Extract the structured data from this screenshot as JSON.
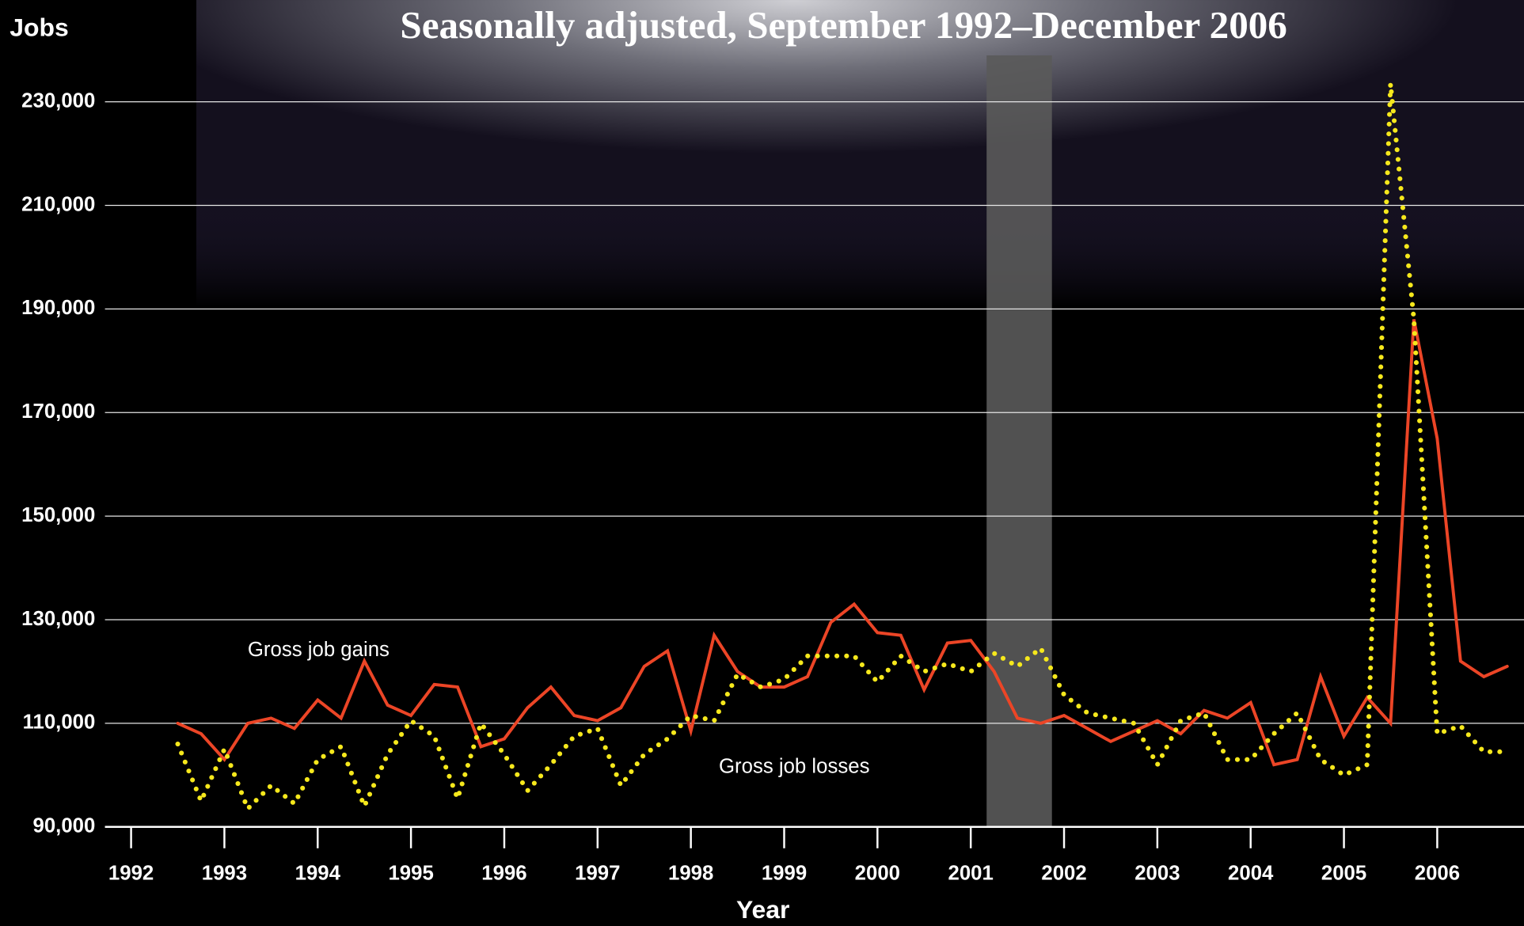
{
  "chart_data": {
    "type": "line",
    "title": "Seasonally adjusted, September 1992–December 2006",
    "y_label": "Jobs",
    "x_label": "Year",
    "xlim": [
      1991.72,
      2006.93
    ],
    "xticks": [
      1992,
      1993,
      1994,
      1995,
      1996,
      1997,
      1998,
      1999,
      2000,
      2001,
      2002,
      2003,
      2004,
      2005,
      2006
    ],
    "ylim": [
      90000,
      240000
    ],
    "yticks": [
      {
        "value": 90000,
        "label": "90,000"
      },
      {
        "value": 110000,
        "label": "110,000"
      },
      {
        "value": 130000,
        "label": "130,000"
      },
      {
        "value": 150000,
        "label": "150,000"
      },
      {
        "value": 170000,
        "label": "170,000"
      },
      {
        "value": 190000,
        "label": "190,000"
      },
      {
        "value": 210000,
        "label": "210,000"
      },
      {
        "value": 230000,
        "label": "230,000"
      }
    ],
    "grid": true,
    "shaded_xrange": [
      2001.17,
      2001.87
    ],
    "x": [
      1992.5,
      1992.75,
      1993,
      1993.25,
      1993.5,
      1993.75,
      1994,
      1994.25,
      1994.5,
      1994.75,
      1995,
      1995.25,
      1995.5,
      1995.75,
      1996,
      1996.25,
      1996.5,
      1996.75,
      1997,
      1997.25,
      1997.5,
      1997.75,
      1998,
      1998.25,
      1998.5,
      1998.75,
      1999,
      1999.25,
      1999.5,
      1999.75,
      2000,
      2000.25,
      2000.5,
      2000.75,
      2001,
      2001.25,
      2001.5,
      2001.75,
      2002,
      2002.25,
      2002.5,
      2002.75,
      2003,
      2003.25,
      2003.5,
      2003.75,
      2004,
      2004.25,
      2004.5,
      2004.75,
      2005,
      2005.25,
      2005.5,
      2005.75,
      2006,
      2006.25,
      2006.5,
      2006.75
    ],
    "series": [
      {
        "name": "Gross job gains",
        "color": "#ec4526",
        "style": "solid",
        "values": [
          110000,
          108000,
          103000,
          110000,
          111000,
          109000,
          114500,
          111000,
          122000,
          113500,
          111500,
          117500,
          117000,
          105500,
          107000,
          113000,
          117000,
          111500,
          110500,
          113000,
          121000,
          124000,
          108500,
          127000,
          120000,
          117000,
          117000,
          119000,
          129500,
          133000,
          127500,
          127000,
          116500,
          125500,
          126000,
          120000,
          111000,
          110000,
          111500,
          109000,
          106500,
          108500,
          110500,
          108000,
          112500,
          111000,
          114000,
          102000,
          103000,
          119000,
          107500,
          115000,
          110000,
          188000,
          165000,
          122000,
          119000,
          121000
        ]
      },
      {
        "name": "Gross job losses",
        "color": "#f6e81c",
        "style": "dotted",
        "values": [
          106000,
          95000,
          105000,
          93500,
          98000,
          94500,
          103000,
          105500,
          94000,
          104000,
          110500,
          107500,
          95500,
          110000,
          104000,
          97000,
          102000,
          107500,
          109000,
          98000,
          104000,
          107000,
          111500,
          110500,
          119500,
          117000,
          118500,
          123000,
          123000,
          123000,
          118000,
          123000,
          120000,
          121500,
          120000,
          123500,
          121000,
          124500,
          115500,
          112000,
          111000,
          110000,
          102000,
          110500,
          112000,
          103000,
          103000,
          108000,
          112000,
          103000,
          100000,
          102000,
          233500,
          188000,
          108000,
          109500,
          104500,
          104500
        ]
      }
    ],
    "annotations": [
      {
        "text": "Gross job gains",
        "x": 1993.25,
        "y": 124000
      },
      {
        "text": "Gross job losses",
        "x": 1998.3,
        "y": 101500
      }
    ]
  }
}
